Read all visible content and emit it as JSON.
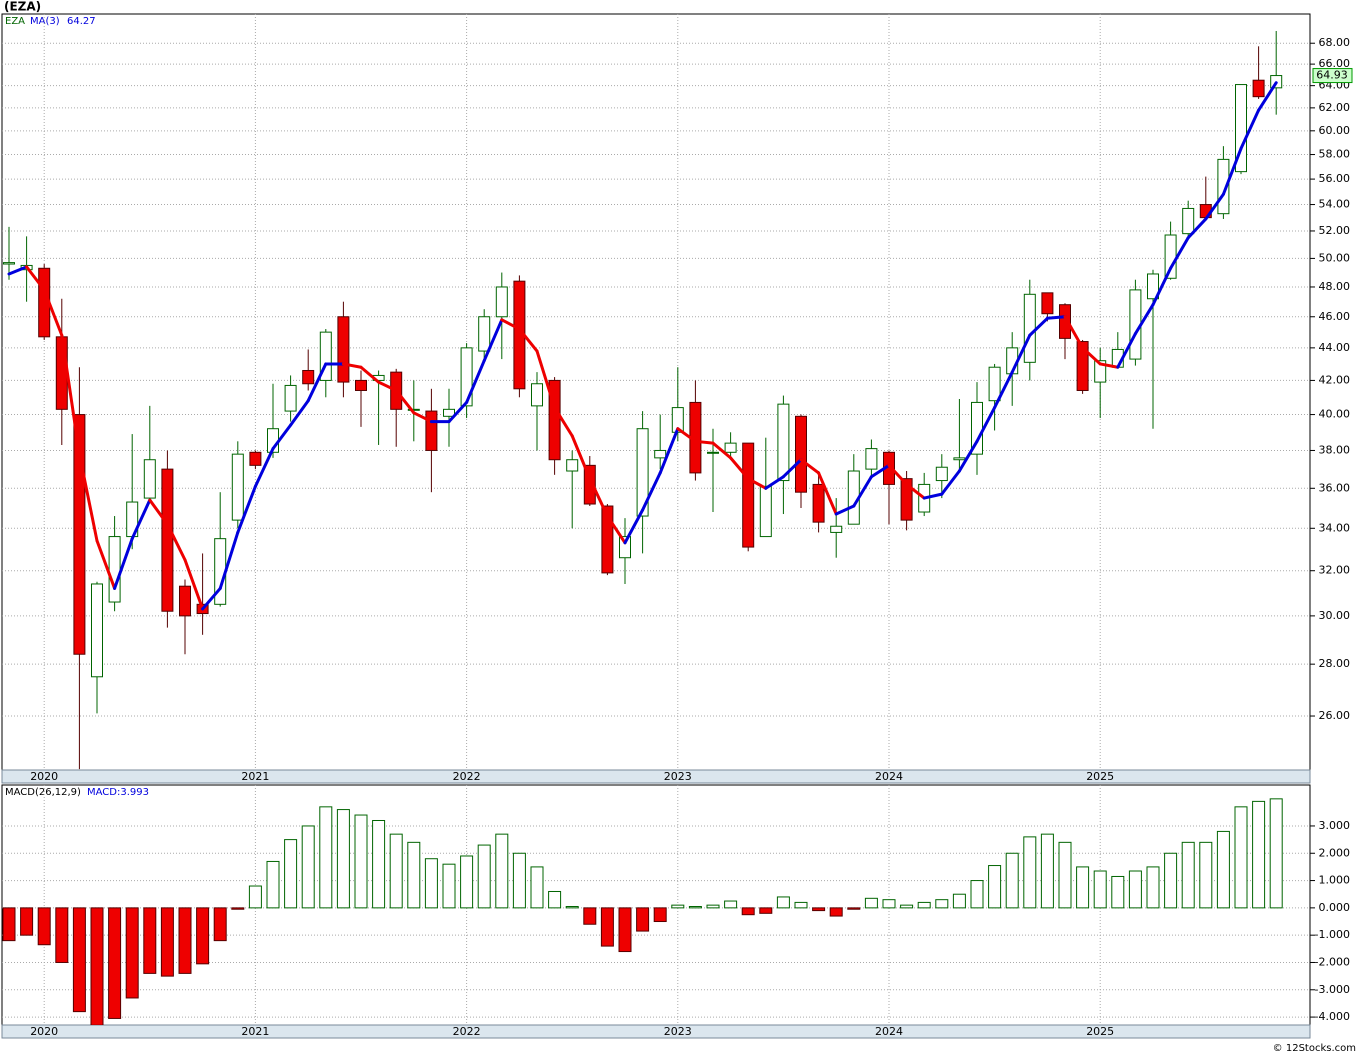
{
  "chart_data": [
    {
      "type": "candlestick",
      "title": "(EZA)",
      "name": "EZA",
      "log": true,
      "grid": true,
      "up_color": "#006400",
      "down_color": "#ee0000",
      "categories": [
        null,
        null,
        "2020",
        null,
        null,
        null,
        null,
        null,
        null,
        null,
        null,
        null,
        null,
        null,
        "2021",
        null,
        null,
        null,
        null,
        null,
        null,
        null,
        null,
        null,
        null,
        null,
        "2022",
        null,
        null,
        null,
        null,
        null,
        null,
        null,
        null,
        null,
        null,
        null,
        "2023",
        null,
        null,
        null,
        null,
        null,
        null,
        null,
        null,
        null,
        null,
        null,
        "2024",
        null,
        null,
        null,
        null,
        null,
        null,
        null,
        null,
        null,
        null,
        null,
        "2025",
        null,
        null,
        null,
        null,
        null,
        null,
        null,
        null,
        null,
        null
      ],
      "open": [
        49.6,
        49.2,
        49.3,
        44.7,
        40,
        27.5,
        30.6,
        33.6,
        35.5,
        37,
        31.3,
        30.5,
        30.5,
        34.4,
        37.9,
        37.9,
        40.2,
        42.6,
        42,
        46,
        42,
        42,
        42.5,
        40.3,
        40.2,
        39.9,
        40.5,
        43.8,
        46,
        48.4,
        40.5,
        42,
        36.9,
        37.2,
        35.1,
        32.6,
        34.6,
        37.6,
        39,
        40.7,
        37.9,
        37.9,
        38.4,
        33.6,
        36.4,
        39.9,
        36.2,
        33.8,
        34.2,
        37,
        37.9,
        36.5,
        34.8,
        36.4,
        37.5,
        37.8,
        40.8,
        42.4,
        43.1,
        47.6,
        46.8,
        44.4,
        41.9,
        42.8,
        43.3,
        47.2,
        48.6,
        51.8,
        54,
        53.3,
        56.6,
        64.5,
        63.8
      ],
      "high": [
        52.3,
        51.6,
        49.6,
        47.2,
        42.8,
        31.5,
        34.6,
        38.9,
        40.5,
        38,
        31.6,
        32.8,
        35.8,
        38.5,
        38,
        41.8,
        42.3,
        43.9,
        45.2,
        47,
        42.6,
        42.6,
        42.7,
        42,
        41.5,
        41.5,
        44.3,
        46.5,
        49,
        48.8,
        42.5,
        42.2,
        38,
        37.7,
        35.2,
        34.5,
        40.2,
        40,
        42.8,
        42,
        39.2,
        39,
        38.4,
        38.7,
        41.1,
        40,
        36.9,
        35.5,
        37.8,
        38.6,
        38,
        36.9,
        36.8,
        37.8,
        40.9,
        41.9,
        43,
        45,
        48.5,
        47.6,
        46.9,
        44.5,
        44,
        45,
        48.5,
        49.2,
        52.7,
        54.3,
        56.2,
        58.7,
        64.1,
        67.7,
        69.2
      ],
      "low": [
        48.5,
        47,
        44.5,
        38.3,
        24.1,
        26.1,
        30.2,
        33,
        35.5,
        29.5,
        28.4,
        29.2,
        30.4,
        34,
        37,
        37.6,
        39.6,
        41.4,
        41,
        41,
        39.3,
        38.3,
        38.2,
        38.5,
        35.8,
        38.2,
        39.8,
        43.3,
        43.3,
        41,
        38,
        36.7,
        34,
        35.1,
        31.8,
        31.4,
        32.8,
        37,
        38.5,
        36.4,
        34.8,
        37.5,
        32.9,
        33.6,
        34.7,
        35,
        33.8,
        32.6,
        34.2,
        36.6,
        34.2,
        33.9,
        34.6,
        35.5,
        37,
        36.7,
        39.1,
        40.5,
        42,
        45.7,
        43.3,
        41.2,
        39.8,
        42.8,
        42.9,
        39.2,
        48.5,
        51.4,
        52.8,
        52.9,
        56.4,
        62.8,
        61.4
      ],
      "close": [
        49.7,
        49.5,
        44.7,
        40.3,
        28.4,
        31.4,
        33.6,
        35.3,
        37.5,
        30.2,
        30,
        30.1,
        33.5,
        37.8,
        37.2,
        39.2,
        41.7,
        41.8,
        45,
        41.9,
        41.4,
        42.3,
        40.3,
        40.3,
        38,
        40.3,
        44,
        46,
        48,
        41.5,
        41.8,
        37.5,
        37.5,
        35.2,
        31.9,
        33.6,
        39.2,
        38,
        40.4,
        36.8,
        37.9,
        38.4,
        33.1,
        36.1,
        40.6,
        35.8,
        34.3,
        34.1,
        36.9,
        38.1,
        36.2,
        34.4,
        36.2,
        37.1,
        37.6,
        40.7,
        42.8,
        44,
        47.5,
        46.2,
        44.6,
        41.4,
        43.2,
        43.9,
        47.8,
        48.9,
        51.7,
        53.7,
        53,
        57.6,
        64.1,
        63,
        64.93
      ],
      "ma": {
        "name": "MA(3)",
        "up_color": "#0000dd",
        "down_color": "#ee0000",
        "values": [
          48.9,
          49.4,
          47.8,
          44.8,
          37.8,
          33.4,
          31.2,
          33.5,
          35.4,
          34.2,
          32.5,
          30.3,
          31.2,
          33.8,
          36.1,
          38.1,
          39.4,
          40.8,
          43,
          43,
          42.8,
          41.9,
          41.4,
          40.1,
          39.6,
          39.6,
          40.7,
          43.2,
          45.8,
          45.2,
          43.8,
          40.4,
          38.8,
          36.5,
          34.6,
          33.3,
          34.9,
          36.8,
          39.2,
          38.5,
          38.4,
          37.6,
          36.5,
          36,
          36.6,
          37.5,
          36.8,
          34.7,
          35.1,
          36.6,
          37.2,
          36.2,
          35.5,
          35.7,
          36.9,
          38.5,
          40.4,
          42.5,
          44.8,
          45.9,
          46,
          44,
          43,
          42.8,
          44.9,
          46.8,
          49.3,
          51.5,
          52.9,
          54.8,
          58.5,
          61.8,
          64.27
        ]
      },
      "ylim": [
        24.07,
        70.9
      ],
      "yticks": [
        {
          "value": 26,
          "label": "26.00"
        },
        {
          "value": 28,
          "label": "28.00"
        },
        {
          "value": 30,
          "label": "30.00"
        },
        {
          "value": 32,
          "label": "32.00"
        },
        {
          "value": 34,
          "label": "34.00"
        },
        {
          "value": 36,
          "label": "36.00"
        },
        {
          "value": 38,
          "label": "38.00"
        },
        {
          "value": 40,
          "label": "40.00"
        },
        {
          "value": 42,
          "label": "42.00"
        },
        {
          "value": 44,
          "label": "44.00"
        },
        {
          "value": 46,
          "label": "46.00"
        },
        {
          "value": 48,
          "label": "48.00"
        },
        {
          "value": 50,
          "label": "50.00"
        },
        {
          "value": 52,
          "label": "52.00"
        },
        {
          "value": 54,
          "label": "54.00"
        },
        {
          "value": 56,
          "label": "56.00"
        },
        {
          "value": 58,
          "label": "58.00"
        },
        {
          "value": 60,
          "label": "60.00"
        },
        {
          "value": 62,
          "label": "62.00"
        },
        {
          "value": 64,
          "label": "64.00"
        },
        {
          "value": 66,
          "label": "66.00"
        },
        {
          "value": 68,
          "label": "68.00"
        }
      ]
    },
    {
      "type": "bar",
      "title": "MACD(26,12,9)",
      "legend": "MACD:3.993",
      "grid": true,
      "up_color": "#006400",
      "down_color": "#ee0000",
      "categories": [
        null,
        null,
        "2020",
        null,
        null,
        null,
        null,
        null,
        null,
        null,
        null,
        null,
        null,
        null,
        "2021",
        null,
        null,
        null,
        null,
        null,
        null,
        null,
        null,
        null,
        null,
        null,
        "2022",
        null,
        null,
        null,
        null,
        null,
        null,
        null,
        null,
        null,
        null,
        null,
        "2023",
        null,
        null,
        null,
        null,
        null,
        null,
        null,
        null,
        null,
        null,
        null,
        "2024",
        null,
        null,
        null,
        null,
        null,
        null,
        null,
        null,
        null,
        null,
        null,
        "2025",
        null,
        null,
        null,
        null,
        null,
        null,
        null,
        null,
        null,
        null
      ],
      "values": [
        -1.2,
        -1.0,
        -1.35,
        -2.0,
        -3.8,
        -4.3,
        -4.05,
        -3.3,
        -2.4,
        -2.5,
        -2.4,
        -2.05,
        -1.2,
        -0.05,
        0.8,
        1.7,
        2.5,
        3.0,
        3.7,
        3.6,
        3.4,
        3.2,
        2.7,
        2.4,
        1.8,
        1.6,
        1.9,
        2.3,
        2.7,
        2.0,
        1.5,
        0.6,
        0.05,
        -0.6,
        -1.4,
        -1.6,
        -0.85,
        -0.5,
        0.1,
        0.05,
        0.1,
        0.25,
        -0.25,
        -0.2,
        0.4,
        0.2,
        -0.1,
        -0.3,
        -0.05,
        0.35,
        0.3,
        0.1,
        0.2,
        0.3,
        0.5,
        1.0,
        1.55,
        2.0,
        2.6,
        2.7,
        2.4,
        1.5,
        1.35,
        1.15,
        1.35,
        1.5,
        2.0,
        2.4,
        2.4,
        2.8,
        3.7,
        3.9,
        3.993
      ],
      "ylim": [
        -4.29,
        4.5
      ],
      "yticks": [
        {
          "value": -4,
          "label": "-4.000"
        },
        {
          "value": -3,
          "label": "-3.000"
        },
        {
          "value": -2,
          "label": "-2.000"
        },
        {
          "value": -1,
          "label": "-1.000"
        },
        {
          "value": 0,
          "label": "0.000"
        },
        {
          "value": 1,
          "label": "1.000"
        },
        {
          "value": 2,
          "label": "2.000"
        },
        {
          "value": 3,
          "label": "3.000"
        }
      ]
    }
  ],
  "footer": "© 12Stocks.com"
}
